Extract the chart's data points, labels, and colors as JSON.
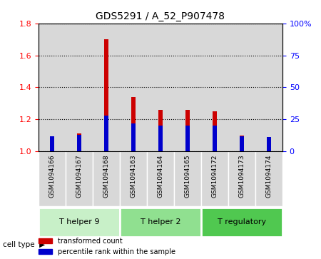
{
  "title": "GDS5291 / A_52_P907478",
  "samples": [
    "GSM1094166",
    "GSM1094167",
    "GSM1094168",
    "GSM1094163",
    "GSM1094164",
    "GSM1094165",
    "GSM1094172",
    "GSM1094173",
    "GSM1094174"
  ],
  "transformed_counts": [
    1.08,
    1.11,
    1.7,
    1.34,
    1.26,
    1.26,
    1.25,
    1.1,
    1.06
  ],
  "percentile_ranks": [
    12,
    13,
    28,
    22,
    20,
    20,
    20,
    12,
    11
  ],
  "cell_types": [
    {
      "label": "T helper 9",
      "start": 0,
      "end": 3,
      "color": "#c8f0c8"
    },
    {
      "label": "T helper 2",
      "start": 3,
      "end": 6,
      "color": "#90e090"
    },
    {
      "label": "T regulatory",
      "start": 6,
      "end": 9,
      "color": "#50c850"
    }
  ],
  "ylim_left": [
    1.0,
    1.8
  ],
  "ylim_right": [
    0,
    100
  ],
  "yticks_left": [
    1.0,
    1.2,
    1.4,
    1.6,
    1.8
  ],
  "yticks_right": [
    0,
    25,
    50,
    75,
    100
  ],
  "ytick_labels_right": [
    "0",
    "25",
    "50",
    "75",
    "100%"
  ],
  "bar_color_red": "#cc0000",
  "bar_color_blue": "#0000cc",
  "bar_width": 0.5,
  "legend_labels": [
    "transformed count",
    "percentile rank within the sample"
  ],
  "cell_type_label": "cell type",
  "background_color": "#ffffff",
  "plot_bg_color": "#ffffff",
  "label_area_color": "#d8d8d8"
}
